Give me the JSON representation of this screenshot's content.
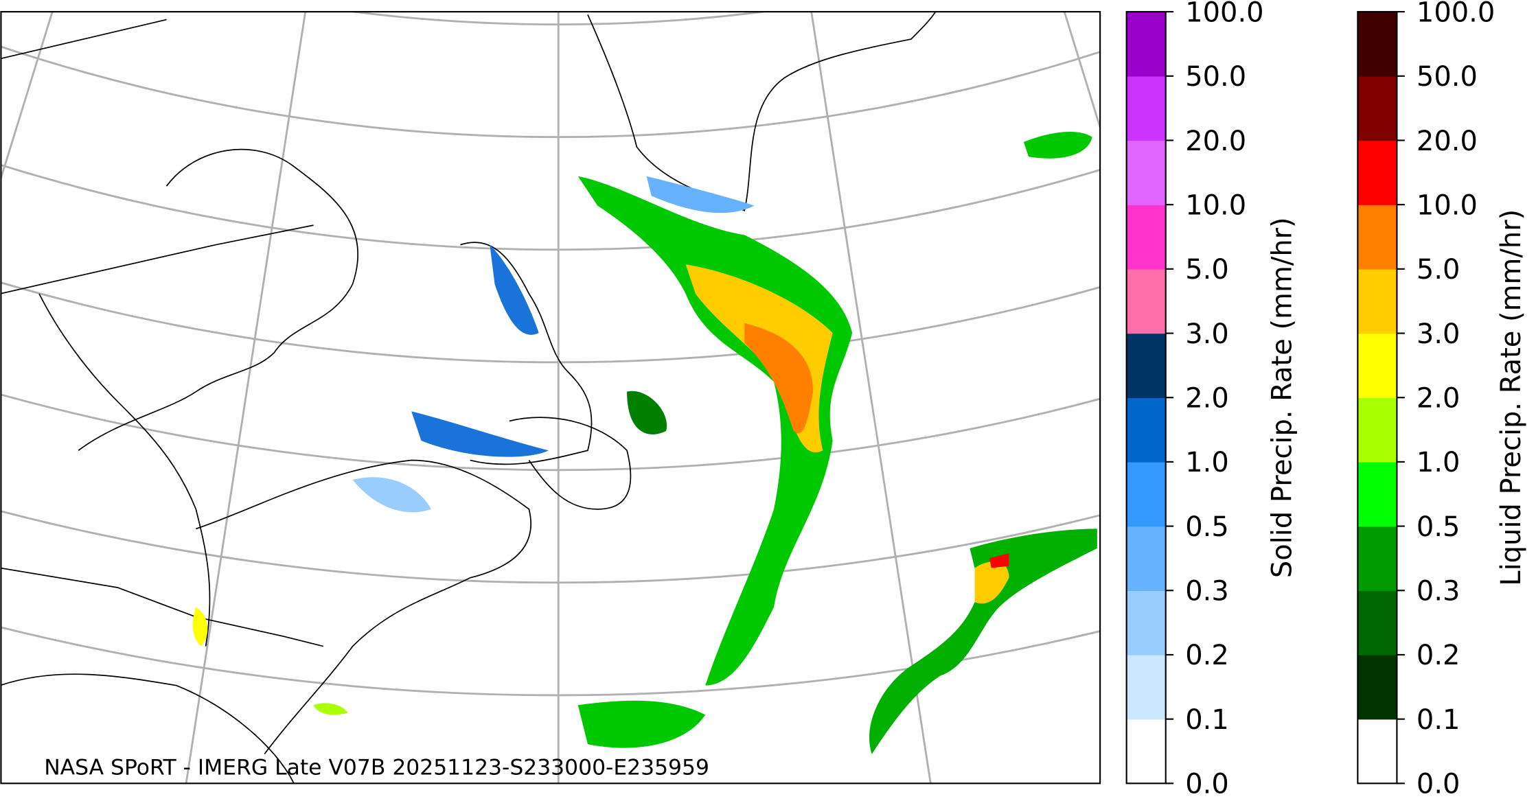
{
  "map": {
    "caption": "NASA SPoRT - IMERG Late V07B 20251123-S233000-E235959"
  },
  "colorbars": [
    {
      "label": "Solid Precip. Rate (mm/hr)",
      "colors": [
        "#ffffff",
        "#cce6ff",
        "#99ccff",
        "#66b2ff",
        "#3399ff",
        "#0066cc",
        "#003366",
        "#ff6eaa",
        "#ff33cc",
        "#e066ff",
        "#cc33ff",
        "#9900cc"
      ],
      "ticks": [
        {
          "value": 0,
          "label": "0.0"
        },
        {
          "value": 0.1,
          "label": "0.1"
        },
        {
          "value": 0.2,
          "label": "0.2"
        },
        {
          "value": 0.3,
          "label": "0.3"
        },
        {
          "value": 0.5,
          "label": "0.5"
        },
        {
          "value": 1,
          "label": "1.0"
        },
        {
          "value": 2,
          "label": "2.0"
        },
        {
          "value": 3,
          "label": "3.0"
        },
        {
          "value": 5,
          "label": "5.0"
        },
        {
          "value": 10,
          "label": "10.0"
        },
        {
          "value": 20,
          "label": "20.0"
        },
        {
          "value": 50,
          "label": "50.0"
        },
        {
          "value": 100,
          "label": "100.0"
        }
      ]
    },
    {
      "label": "Liquid Precip. Rate (mm/hr)",
      "colors": [
        "#ffffff",
        "#003300",
        "#006600",
        "#009900",
        "#00ff00",
        "#aaff00",
        "#ffff00",
        "#ffcc00",
        "#ff8000",
        "#ff0000",
        "#800000",
        "#400000"
      ],
      "ticks": [
        {
          "value": 0,
          "label": "0.0"
        },
        {
          "value": 0.1,
          "label": "0.1"
        },
        {
          "value": 0.2,
          "label": "0.2"
        },
        {
          "value": 0.3,
          "label": "0.3"
        },
        {
          "value": 0.5,
          "label": "0.5"
        },
        {
          "value": 1,
          "label": "1.0"
        },
        {
          "value": 2,
          "label": "2.0"
        },
        {
          "value": 3,
          "label": "3.0"
        },
        {
          "value": 5,
          "label": "5.0"
        },
        {
          "value": 10,
          "label": "10.0"
        },
        {
          "value": 20,
          "label": "20.0"
        },
        {
          "value": 50,
          "label": "50.0"
        },
        {
          "value": 100,
          "label": "100.0"
        }
      ]
    }
  ]
}
